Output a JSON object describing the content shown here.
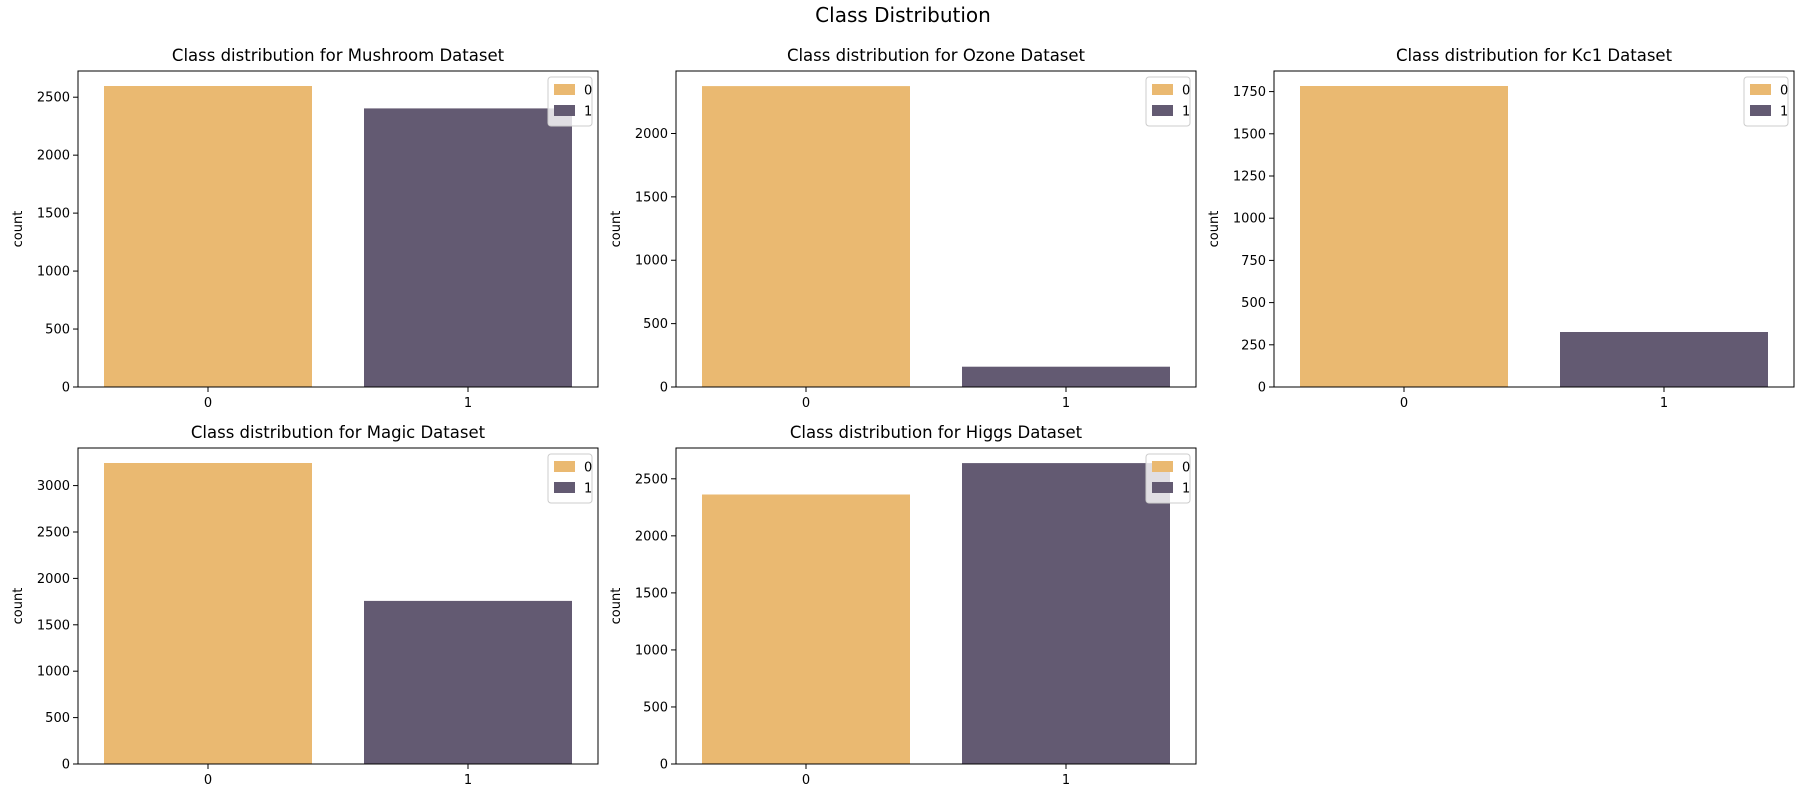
{
  "figure": {
    "title": "Class Distribution",
    "colors": {
      "class_0": "#EAB971",
      "class_1": "#635A72"
    }
  },
  "chart_data": [
    {
      "type": "bar",
      "title": "Class distribution for Mushroom Dataset",
      "xlabel": "",
      "ylabel": "count",
      "categories": [
        "0",
        "1"
      ],
      "values": [
        2597,
        2403
      ],
      "ylim": [
        0,
        2726
      ],
      "yticks": [
        0,
        500,
        1000,
        1500,
        2000,
        2500
      ],
      "legend": {
        "entries": [
          "0",
          "1"
        ],
        "position": "upper right"
      }
    },
    {
      "type": "bar",
      "title": "Class distribution for Ozone Dataset",
      "xlabel": "",
      "ylabel": "count",
      "categories": [
        "0",
        "1"
      ],
      "values": [
        2374,
        160
      ],
      "ylim": [
        0,
        2493
      ],
      "yticks": [
        0,
        500,
        1000,
        1500,
        2000
      ],
      "legend": {
        "entries": [
          "0",
          "1"
        ],
        "position": "upper right"
      }
    },
    {
      "type": "bar",
      "title": "Class distribution for Kc1 Dataset",
      "xlabel": "",
      "ylabel": "count",
      "categories": [
        "0",
        "1"
      ],
      "values": [
        1783,
        326
      ],
      "ylim": [
        0,
        1872
      ],
      "yticks": [
        0,
        250,
        500,
        750,
        1000,
        1250,
        1500,
        1750
      ],
      "legend": {
        "entries": [
          "0",
          "1"
        ],
        "position": "upper right"
      }
    },
    {
      "type": "bar",
      "title": "Class distribution for Magic Dataset",
      "xlabel": "",
      "ylabel": "count",
      "categories": [
        "0",
        "1"
      ],
      "values": [
        3243,
        1757
      ],
      "ylim": [
        0,
        3405
      ],
      "yticks": [
        0,
        500,
        1000,
        1500,
        2000,
        2500,
        3000
      ],
      "legend": {
        "entries": [
          "0",
          "1"
        ],
        "position": "upper right"
      }
    },
    {
      "type": "bar",
      "title": "Class distribution for Higgs Dataset",
      "xlabel": "",
      "ylabel": "count",
      "categories": [
        "0",
        "1"
      ],
      "values": [
        2362,
        2638
      ],
      "ylim": [
        0,
        2770
      ],
      "yticks": [
        0,
        500,
        1000,
        1500,
        2000,
        2500
      ],
      "legend": {
        "entries": [
          "0",
          "1"
        ],
        "position": "upper right"
      }
    }
  ]
}
